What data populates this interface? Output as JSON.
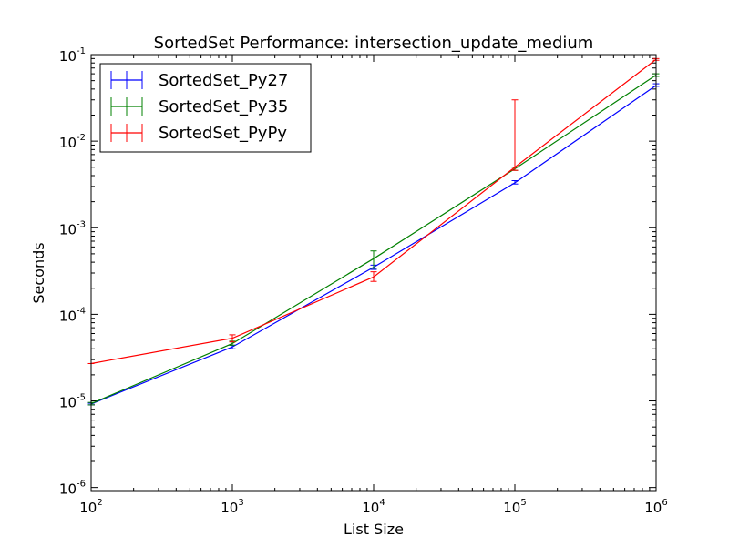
{
  "chart_data": {
    "type": "line",
    "title": "SortedSet Performance: intersection_update_medium",
    "xlabel": "List Size",
    "ylabel": "Seconds",
    "xscale": "log",
    "yscale": "log",
    "xlim": [
      100,
      1000000
    ],
    "ylim": [
      9e-07,
      0.1
    ],
    "x": [
      100,
      1000,
      10000,
      100000,
      1000000
    ],
    "x_tick_labels": [
      {
        "base": "10",
        "exp": "2"
      },
      {
        "base": "10",
        "exp": "3"
      },
      {
        "base": "10",
        "exp": "4"
      },
      {
        "base": "10",
        "exp": "5"
      },
      {
        "base": "10",
        "exp": "6"
      }
    ],
    "y_ticks": [
      1e-06,
      1e-05,
      0.0001,
      0.001,
      0.01,
      0.1
    ],
    "y_tick_labels": [
      {
        "base": "10",
        "exp": "-6"
      },
      {
        "base": "10",
        "exp": "-5"
      },
      {
        "base": "10",
        "exp": "-4"
      },
      {
        "base": "10",
        "exp": "-3"
      },
      {
        "base": "10",
        "exp": "-2"
      },
      {
        "base": "10",
        "exp": "-1"
      }
    ],
    "grid": false,
    "legend_position": "top-left",
    "series": [
      {
        "name": "SortedSet_Py27",
        "color": "#0000ff",
        "values": [
          9.2e-06,
          4.2e-05,
          0.00035,
          0.0033,
          0.044
        ],
        "err_low": [
          9e-06,
          4e-05,
          0.00033,
          0.0032,
          0.043
        ],
        "err_high": [
          9.4e-06,
          4.4e-05,
          0.00037,
          0.0035,
          0.046
        ]
      },
      {
        "name": "SortedSet_Py35",
        "color": "#008000",
        "values": [
          9.3e-06,
          4.6e-05,
          0.00044,
          0.0048,
          0.058
        ],
        "err_low": [
          9e-06,
          4.4e-05,
          0.00034,
          0.0046,
          0.056
        ],
        "err_high": [
          9.6e-06,
          4.9e-05,
          0.00054,
          0.005,
          0.06
        ]
      },
      {
        "name": "SortedSet_PyPy",
        "color": "#ff0000",
        "values": [
          2.7e-05,
          5.3e-05,
          0.00027,
          0.005,
          0.088
        ],
        "err_low": [
          2.7e-05,
          4.8e-05,
          0.00024,
          0.0046,
          0.086
        ],
        "err_high": [
          2.7e-05,
          5.8e-05,
          0.00031,
          0.03,
          0.09
        ]
      }
    ]
  }
}
